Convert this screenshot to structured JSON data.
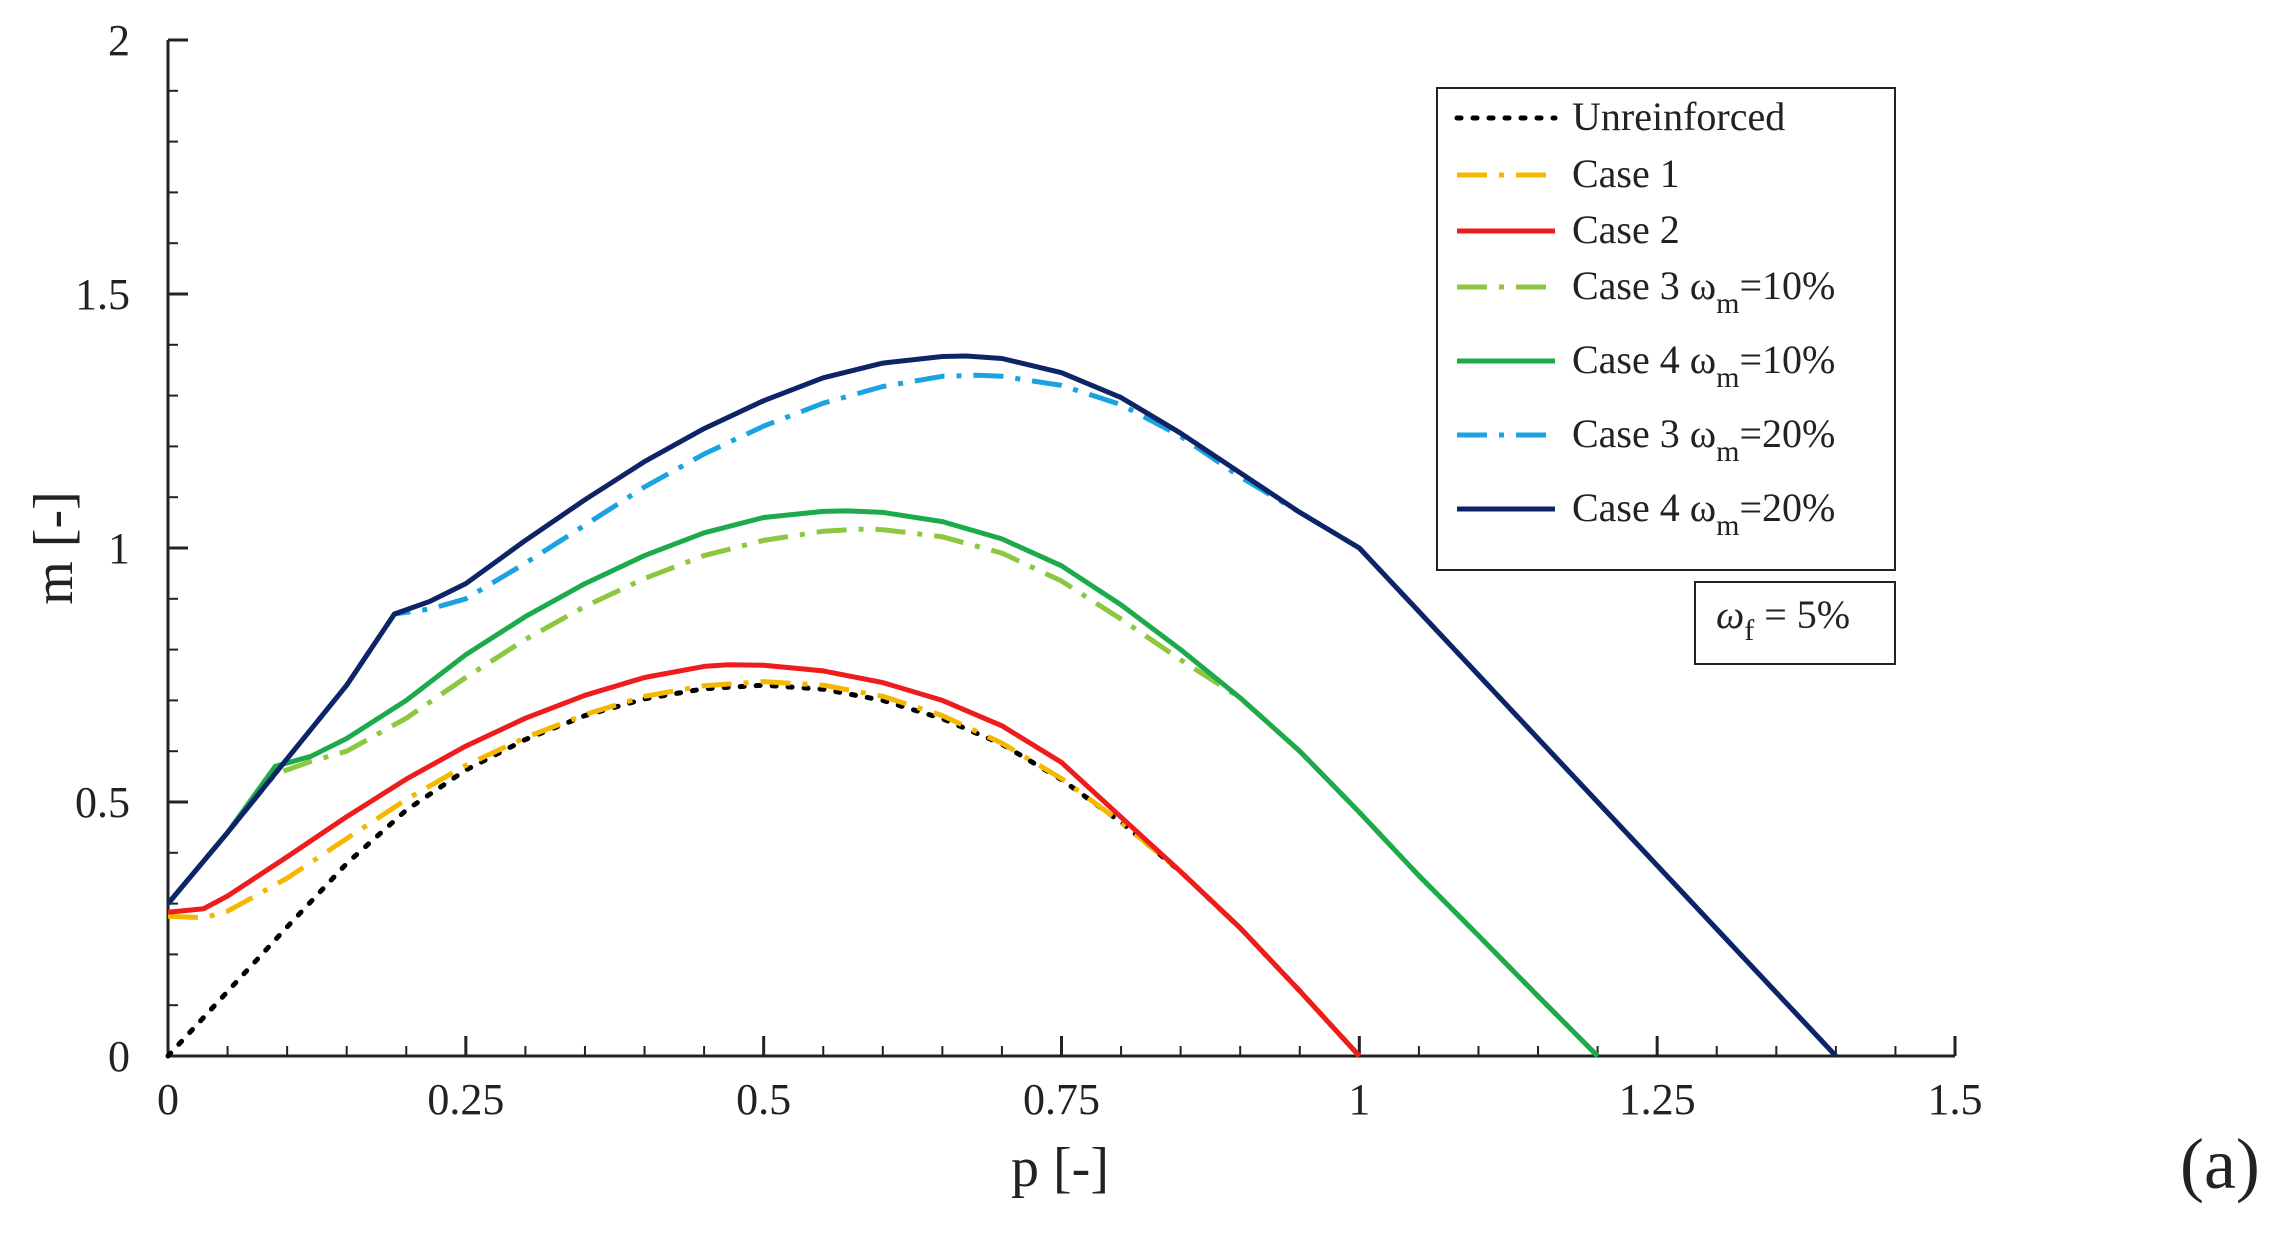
{
  "panel_label": "(a)",
  "chart_data": {
    "type": "line",
    "title": "",
    "xlabel": "p [-]",
    "ylabel": "m [-]",
    "xlim": [
      0,
      1.5
    ],
    "ylim": [
      0,
      2
    ],
    "x_ticks": [
      "0",
      "0.25",
      "0.5",
      "0.75",
      "1",
      "1.25",
      "1.5"
    ],
    "y_ticks": [
      "0",
      "0.5",
      "1",
      "1.5",
      "2"
    ],
    "grid": false,
    "legend_position": "top-right",
    "annotation": {
      "main": "ω",
      "sub": "f",
      "rest": " = 5%"
    },
    "series": [
      {
        "name": "Unreinforced",
        "legend": {
          "prefix": "Unreinforced",
          "sub": "",
          "rest": ""
        },
        "color": "#000000",
        "style": "dotted",
        "x": [
          0,
          0.05,
          0.1,
          0.15,
          0.2,
          0.25,
          0.3,
          0.35,
          0.4,
          0.45,
          0.5,
          0.55,
          0.6,
          0.65,
          0.7,
          0.75,
          0.8,
          0.85,
          0.9,
          0.95,
          1.0
        ],
        "y": [
          0,
          0.127,
          0.254,
          0.379,
          0.484,
          0.563,
          0.623,
          0.67,
          0.703,
          0.723,
          0.73,
          0.722,
          0.7,
          0.664,
          0.614,
          0.544,
          0.46,
          0.363,
          0.252,
          0.128,
          0
        ]
      },
      {
        "name": "Case 1",
        "legend": {
          "prefix": "Case 1",
          "sub": "",
          "rest": ""
        },
        "color": "#F5B800",
        "style": "dashdot",
        "x": [
          0,
          0.03,
          0.05,
          0.1,
          0.15,
          0.2,
          0.25,
          0.3,
          0.35,
          0.4,
          0.45,
          0.5,
          0.55,
          0.6,
          0.65,
          0.7,
          0.75,
          0.8,
          0.85,
          0.9,
          0.95,
          1.0
        ],
        "y": [
          0.275,
          0.272,
          0.285,
          0.35,
          0.428,
          0.505,
          0.572,
          0.627,
          0.672,
          0.708,
          0.729,
          0.737,
          0.73,
          0.708,
          0.67,
          0.616,
          0.546,
          0.46,
          0.363,
          0.252,
          0.128,
          0
        ]
      },
      {
        "name": "Case 2",
        "legend": {
          "prefix": "Case 2",
          "sub": "",
          "rest": ""
        },
        "color": "#EE1C1C",
        "style": "solid",
        "x": [
          0,
          0.03,
          0.05,
          0.1,
          0.15,
          0.2,
          0.25,
          0.3,
          0.35,
          0.4,
          0.45,
          0.47,
          0.5,
          0.55,
          0.6,
          0.65,
          0.7,
          0.75,
          0.8,
          0.85,
          0.9,
          0.95,
          1.0
        ],
        "y": [
          0.283,
          0.29,
          0.315,
          0.392,
          0.471,
          0.545,
          0.61,
          0.665,
          0.71,
          0.745,
          0.767,
          0.77,
          0.769,
          0.758,
          0.735,
          0.7,
          0.65,
          0.578,
          0.47,
          0.363,
          0.252,
          0.128,
          0
        ]
      },
      {
        "name": "Case 3 ωm=10%",
        "legend": {
          "prefix": "Case 3 ω",
          "sub": "m",
          "rest": "=10%"
        },
        "color": "#8DC63F",
        "style": "dashdot",
        "x": [
          0,
          0.05,
          0.09,
          0.12,
          0.15,
          0.2,
          0.25,
          0.3,
          0.35,
          0.4,
          0.45,
          0.5,
          0.55,
          0.58,
          0.6,
          0.65,
          0.7,
          0.75,
          0.8,
          0.85,
          0.9,
          0.95,
          1.0,
          1.05,
          1.1,
          1.15,
          1.2
        ],
        "y": [
          0.3,
          0.44,
          0.555,
          0.58,
          0.6,
          0.665,
          0.745,
          0.82,
          0.885,
          0.94,
          0.985,
          1.015,
          1.033,
          1.037,
          1.036,
          1.022,
          0.99,
          0.935,
          0.86,
          0.78,
          0.705,
          0.6,
          0.48,
          0.355,
          0.237,
          0.118,
          0
        ]
      },
      {
        "name": "Case 4 ωm=10%",
        "legend": {
          "prefix": "Case 4 ω",
          "sub": "m",
          "rest": "=10%"
        },
        "color": "#1DAA4A",
        "style": "solid",
        "x": [
          0,
          0.05,
          0.09,
          0.12,
          0.15,
          0.2,
          0.25,
          0.3,
          0.35,
          0.4,
          0.45,
          0.5,
          0.55,
          0.57,
          0.6,
          0.65,
          0.7,
          0.75,
          0.8,
          0.85,
          0.9,
          0.95,
          1.0,
          1.05,
          1.1,
          1.15,
          1.2
        ],
        "y": [
          0.3,
          0.44,
          0.57,
          0.59,
          0.625,
          0.7,
          0.79,
          0.865,
          0.93,
          0.985,
          1.03,
          1.06,
          1.072,
          1.073,
          1.07,
          1.052,
          1.018,
          0.965,
          0.888,
          0.8,
          0.705,
          0.6,
          0.48,
          0.355,
          0.237,
          0.118,
          0
        ]
      },
      {
        "name": "Case 3 ωm=20%",
        "legend": {
          "prefix": "Case 3 ω",
          "sub": "m",
          "rest": "=20%"
        },
        "color": "#1AA3E0",
        "style": "dashdot",
        "x": [
          0,
          0.05,
          0.1,
          0.15,
          0.19,
          0.22,
          0.25,
          0.3,
          0.35,
          0.4,
          0.45,
          0.5,
          0.55,
          0.6,
          0.65,
          0.68,
          0.7,
          0.75,
          0.8,
          0.85,
          0.9,
          0.95,
          1.0,
          1.05,
          1.1,
          1.15,
          1.2,
          1.25,
          1.3,
          1.35,
          1.4
        ],
        "y": [
          0.3,
          0.44,
          0.585,
          0.73,
          0.87,
          0.88,
          0.9,
          0.97,
          1.045,
          1.12,
          1.185,
          1.24,
          1.285,
          1.318,
          1.338,
          1.34,
          1.338,
          1.32,
          1.282,
          1.22,
          1.14,
          1.07,
          1.0,
          0.875,
          0.75,
          0.625,
          0.5,
          0.375,
          0.25,
          0.125,
          0
        ]
      },
      {
        "name": "Case 4 ωm=20%",
        "legend": {
          "prefix": "Case 4 ω",
          "sub": "m",
          "rest": "=20%"
        },
        "color": "#0D2466",
        "style": "solid",
        "x": [
          0,
          0.05,
          0.1,
          0.15,
          0.19,
          0.22,
          0.25,
          0.3,
          0.35,
          0.4,
          0.45,
          0.5,
          0.55,
          0.6,
          0.65,
          0.67,
          0.7,
          0.75,
          0.8,
          0.85,
          0.9,
          0.95,
          1.0,
          1.05,
          1.1,
          1.15,
          1.2,
          1.25,
          1.3,
          1.35,
          1.4
        ],
        "y": [
          0.3,
          0.44,
          0.585,
          0.73,
          0.87,
          0.895,
          0.93,
          1.015,
          1.095,
          1.17,
          1.235,
          1.29,
          1.335,
          1.364,
          1.377,
          1.378,
          1.373,
          1.345,
          1.296,
          1.226,
          1.148,
          1.07,
          1.0,
          0.875,
          0.75,
          0.625,
          0.5,
          0.375,
          0.25,
          0.125,
          0
        ]
      }
    ]
  }
}
